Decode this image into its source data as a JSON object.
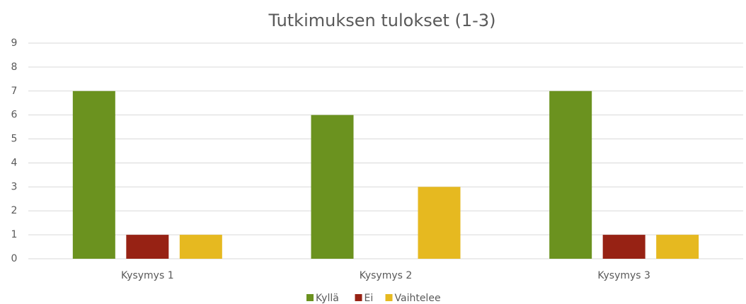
{
  "chart_data": {
    "type": "bar",
    "title": "Tutkimuksen tulokset (1-3)",
    "categories": [
      "Kysymys 1",
      "Kysymys 2",
      "Kysymys 3"
    ],
    "series": [
      {
        "name": "Kyllä",
        "color": "#6b921f",
        "values": [
          7,
          6,
          7
        ]
      },
      {
        "name": "Ei",
        "color": "#972214",
        "values": [
          1,
          0,
          1
        ]
      },
      {
        "name": "Vaihtelee",
        "color": "#e6b920",
        "values": [
          1,
          3,
          1
        ]
      }
    ],
    "ylim": [
      0,
      9
    ],
    "yticks": [
      0,
      1,
      2,
      3,
      4,
      5,
      6,
      7,
      8,
      9
    ],
    "grid": true,
    "legend": "bottom"
  }
}
